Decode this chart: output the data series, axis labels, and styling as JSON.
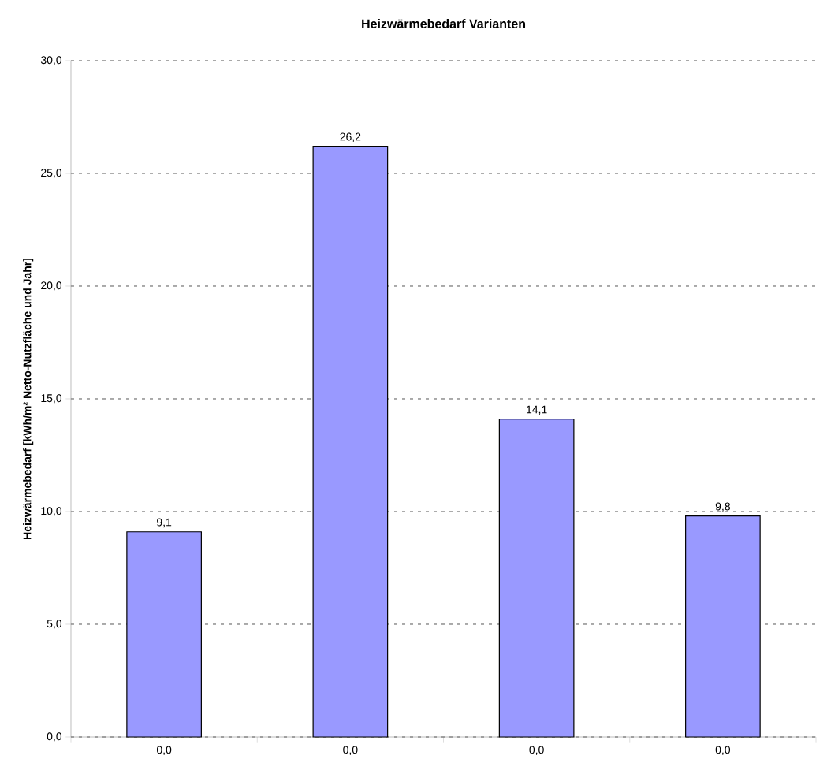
{
  "chart_data": {
    "type": "bar",
    "title": "Heizwärmebedarf Varianten",
    "ylabel": "Heizwärmebedarf [kWh/m² Netto-Nutzfläche und Jahr]",
    "categories": [
      "0,0",
      "0,0",
      "0,0",
      "0,0"
    ],
    "values": [
      9.1,
      26.2,
      14.1,
      9.8
    ],
    "value_labels": [
      "9,1",
      "26,2",
      "14,1",
      "9,8"
    ],
    "color": "#9999ff",
    "ylim": [
      0,
      30
    ],
    "yticks": [
      {
        "value": 0,
        "label": "0,0"
      },
      {
        "value": 5,
        "label": "5,0"
      },
      {
        "value": 10,
        "label": "10,0"
      },
      {
        "value": 15,
        "label": "15,0"
      },
      {
        "value": 20,
        "label": "20,0"
      },
      {
        "value": 25,
        "label": "25,0"
      },
      {
        "value": 30,
        "label": "30,0"
      }
    ],
    "grid": "y"
  }
}
